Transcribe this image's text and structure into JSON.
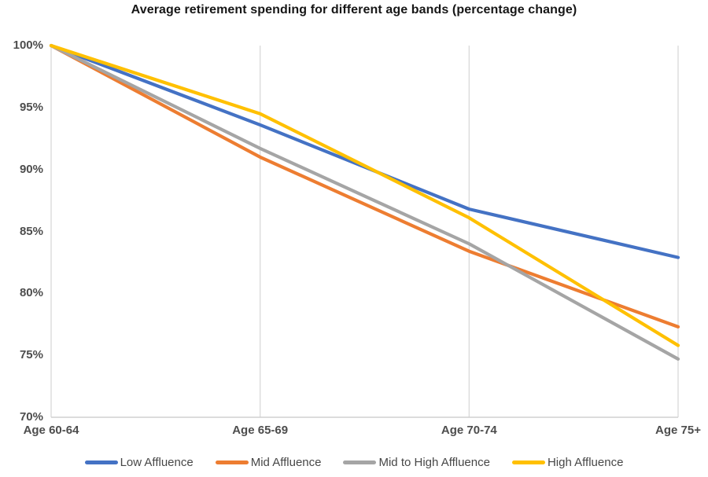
{
  "chart_data": {
    "type": "line",
    "title": "Average retirement spending for different age bands (percentage change)",
    "categories": [
      "Age 60-64",
      "Age 65-69",
      "Age 70-74",
      "Age 75+"
    ],
    "series": [
      {
        "name": "Low Affluence",
        "color": "#4472C4",
        "values": [
          100,
          93.6,
          86.8,
          82.9
        ]
      },
      {
        "name": "Mid Affluence",
        "color": "#ED7D31",
        "values": [
          100,
          91.0,
          83.4,
          77.3
        ]
      },
      {
        "name": "Mid to High Affluence",
        "color": "#A5A5A5",
        "values": [
          100,
          91.7,
          84.0,
          74.7
        ]
      },
      {
        "name": "High Affluence",
        "color": "#FFC000",
        "values": [
          100,
          94.5,
          86.1,
          75.8
        ]
      }
    ],
    "y_axis": {
      "ticks": [
        "100%",
        "95%",
        "90%",
        "85%",
        "80%",
        "75%",
        "70%"
      ],
      "min": 70,
      "max": 100,
      "unit": "%"
    },
    "legend_position": "bottom",
    "gridlines": {
      "vertical": true,
      "horizontal": false
    },
    "grid_color": "#D9D9D9",
    "axis_line_color": "#D0D0D0"
  }
}
